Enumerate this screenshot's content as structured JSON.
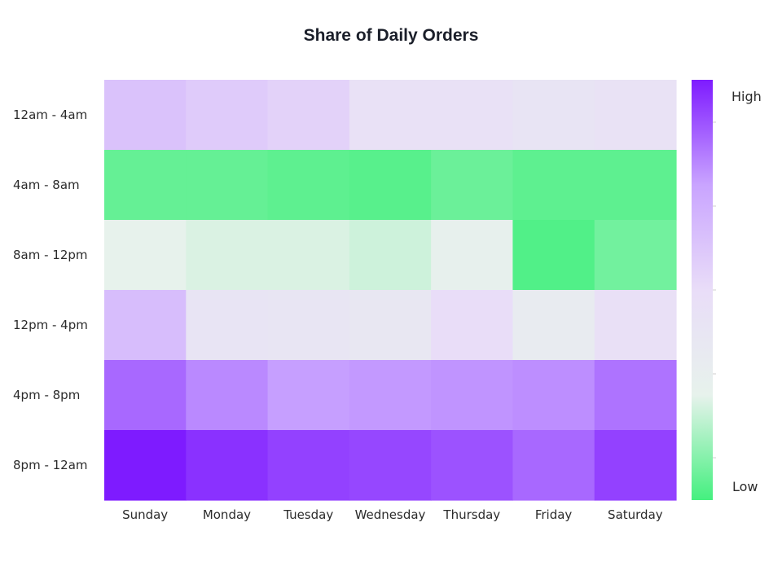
{
  "chart_data": {
    "type": "heatmap",
    "title": "Share of Daily Orders",
    "xlabel": "",
    "ylabel": "",
    "x_categories": [
      "Sunday",
      "Monday",
      "Tuesday",
      "Wednesday",
      "Thursday",
      "Friday",
      "Saturday"
    ],
    "y_categories": [
      "12am - 4am",
      "4am - 8am",
      "8am - 12pm",
      "12pm - 4pm",
      "4pm - 8pm",
      "8pm - 12am"
    ],
    "values": [
      [
        0.62,
        0.58,
        0.55,
        0.45,
        0.45,
        0.42,
        0.44
      ],
      [
        0.05,
        0.05,
        0.04,
        0.03,
        0.06,
        0.04,
        0.04
      ],
      [
        0.25,
        0.23,
        0.23,
        0.21,
        0.27,
        0.02,
        0.07
      ],
      [
        0.64,
        0.42,
        0.4,
        0.38,
        0.5,
        0.33,
        0.46
      ],
      [
        0.86,
        0.8,
        0.76,
        0.77,
        0.78,
        0.79,
        0.84
      ],
      [
        1.0,
        0.96,
        0.93,
        0.92,
        0.9,
        0.86,
        0.93
      ]
    ],
    "colorbar": {
      "high_label": "High",
      "low_label": "Low",
      "colors": [
        "#44f07f",
        "#e7f2ec",
        "#e9ddf8",
        "#c9a4ff",
        "#7e1bff"
      ]
    },
    "grid": false
  }
}
